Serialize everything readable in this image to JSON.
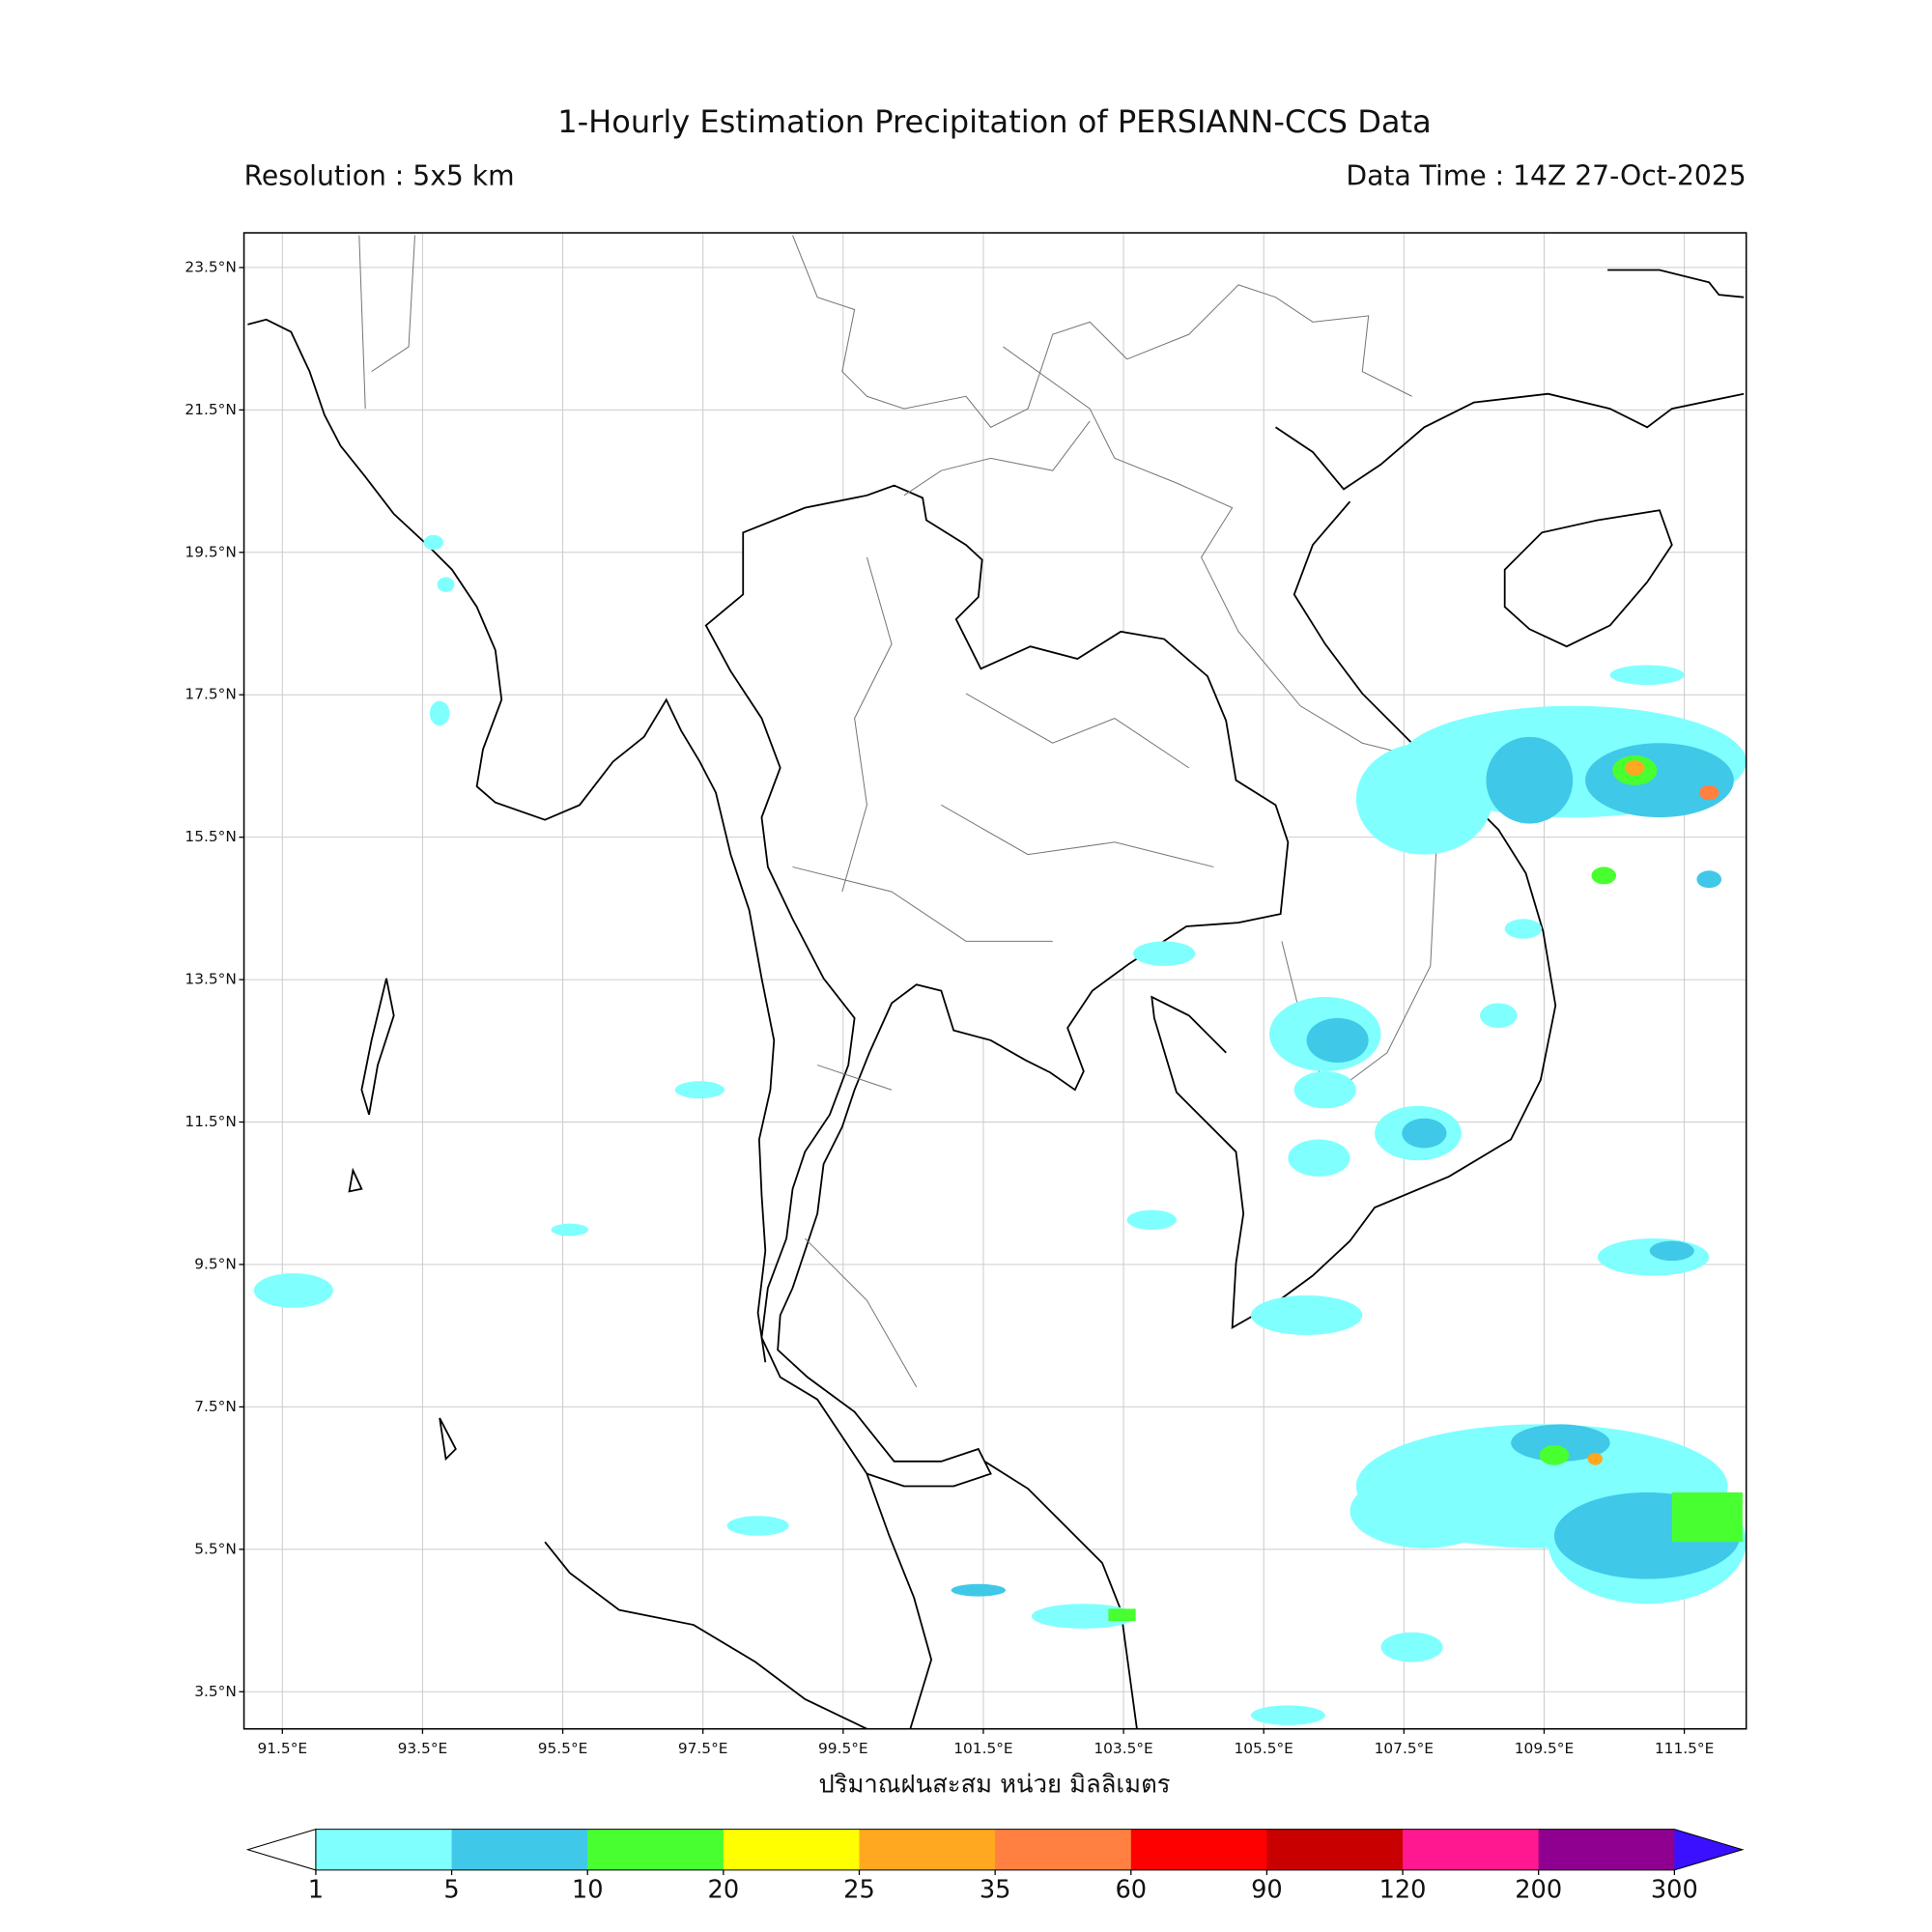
{
  "header": {
    "title": "1-Hourly Estimation Precipitation of PERSIANN-CCS Data",
    "resolution": "Resolution : 5x5 km",
    "data_time": "Data Time : 14Z 27-Oct-2025"
  },
  "map": {
    "lat_ticks": [
      {
        "value": 23.5,
        "label": "23.5°N"
      },
      {
        "value": 21.5,
        "label": "21.5°N"
      },
      {
        "value": 19.5,
        "label": "19.5°N"
      },
      {
        "value": 17.5,
        "label": "17.5°N"
      },
      {
        "value": 15.5,
        "label": "15.5°N"
      },
      {
        "value": 13.5,
        "label": "13.5°N"
      },
      {
        "value": 11.5,
        "label": "11.5°N"
      },
      {
        "value": 9.5,
        "label": "9.5°N"
      },
      {
        "value": 7.5,
        "label": "7.5°N"
      },
      {
        "value": 5.5,
        "label": "5.5°N"
      },
      {
        "value": 3.5,
        "label": "3.5°N"
      }
    ],
    "lon_ticks": [
      {
        "value": 91.5,
        "label": "91.5°E"
      },
      {
        "value": 93.5,
        "label": "93.5°E"
      },
      {
        "value": 95.5,
        "label": "95.5°E"
      },
      {
        "value": 97.5,
        "label": "97.5°E"
      },
      {
        "value": 99.5,
        "label": "99.5°E"
      },
      {
        "value": 101.5,
        "label": "101.5°E"
      },
      {
        "value": 103.5,
        "label": "103.5°E"
      },
      {
        "value": 105.5,
        "label": "105.5°E"
      },
      {
        "value": 107.5,
        "label": "107.5°E"
      },
      {
        "value": 109.5,
        "label": "109.5°E"
      },
      {
        "value": 111.5,
        "label": "111.5°E"
      }
    ],
    "xlabel": "ปริมาณฝนสะสม หน่วย มิลลิเมตร"
  },
  "colorbar": {
    "levels": [
      1,
      5,
      10,
      20,
      25,
      35,
      60,
      90,
      120,
      200,
      300
    ],
    "colors": [
      "#80ffff",
      "#40c8e8",
      "#48ff30",
      "#ffff00",
      "#ffa820",
      "#ff8040",
      "#ff0000",
      "#c80000",
      "#ff1890",
      "#900090"
    ],
    "under_color": "#ffffff",
    "over_color": "#3a10ff"
  }
}
